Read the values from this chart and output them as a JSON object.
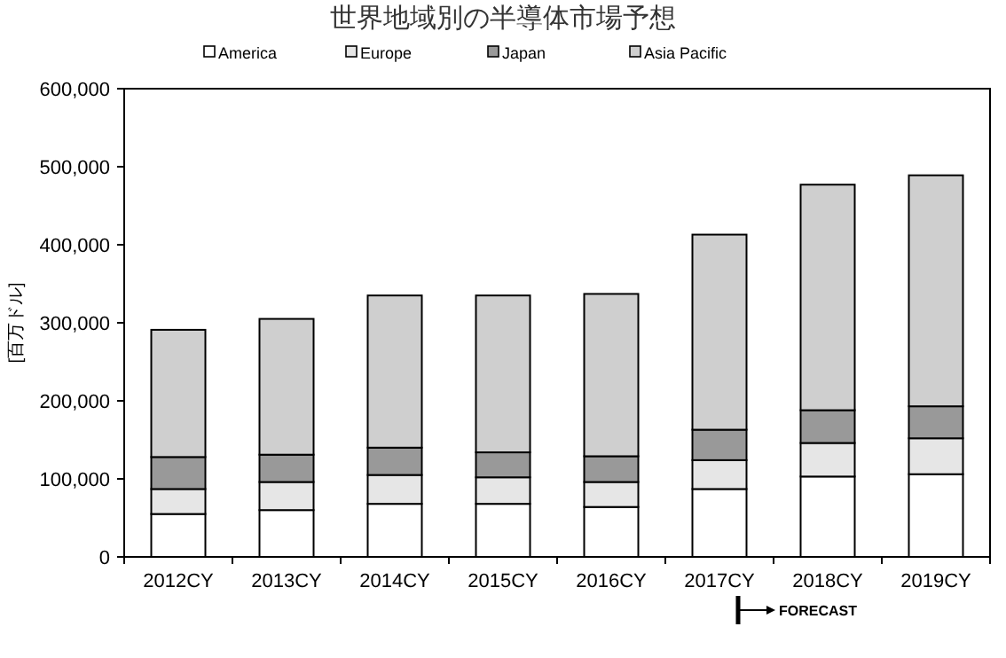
{
  "chart_data": {
    "type": "bar",
    "title": "世界地域別の半導体市場予想",
    "ylabel": "[百万ドル]",
    "stacked": true,
    "categories": [
      "2012CY",
      "2013CY",
      "2014CY",
      "2015CY",
      "2016CY",
      "2017CY",
      "2018CY",
      "2019CY"
    ],
    "series": [
      {
        "name": "America",
        "color": "#ffffff",
        "values": [
          55000,
          60000,
          68000,
          68000,
          64000,
          87000,
          103000,
          106000
        ]
      },
      {
        "name": "Europe",
        "color": "#e6e6e6",
        "values": [
          32000,
          36000,
          37000,
          34000,
          32000,
          37000,
          43000,
          46000
        ]
      },
      {
        "name": "Japan",
        "color": "#999999",
        "values": [
          41000,
          35000,
          35000,
          32000,
          33000,
          39000,
          42000,
          41000
        ]
      },
      {
        "name": "Asia Pacific",
        "color": "#cfcfcf",
        "values": [
          163000,
          174000,
          195000,
          201000,
          208000,
          250000,
          289000,
          296000
        ]
      }
    ],
    "ylim": [
      0,
      600000
    ],
    "yticks": [
      0,
      {
        "value": 100000,
        "label": "100,000"
      },
      {
        "value": 200000,
        "label": "200,000"
      },
      {
        "value": 300000,
        "label": "300,000"
      },
      {
        "value": 400000,
        "label": "400,000"
      },
      {
        "value": 500000,
        "label": "500,000"
      },
      {
        "value": 600000,
        "label": "600,000"
      }
    ],
    "legend": "top",
    "grid": false,
    "annotations": [
      "FORECAST"
    ]
  }
}
